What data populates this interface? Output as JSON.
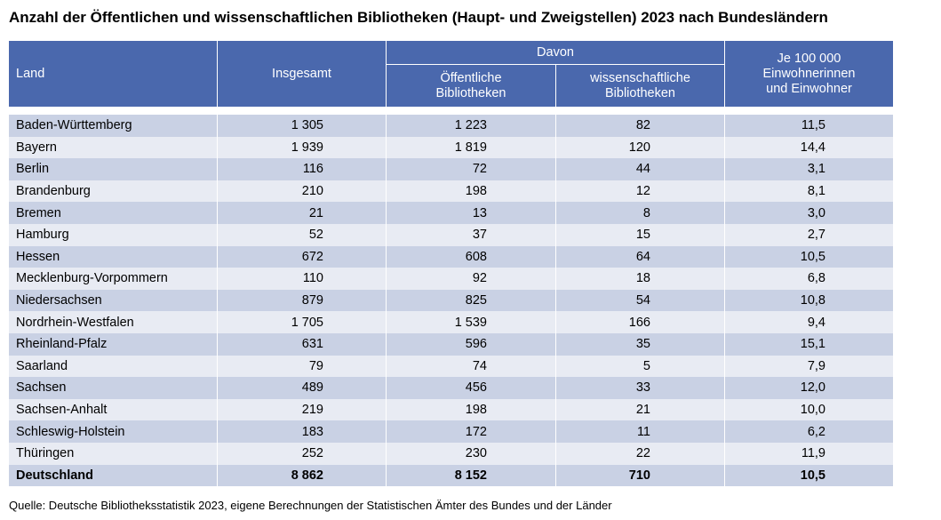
{
  "title": "Anzahl der Öffentlichen und wissenschaftlichen Bibliotheken (Haupt- und Zweigstellen) 2023 nach Bundesländern",
  "table": {
    "header": {
      "land": "Land",
      "insgesamt": "Insgesamt",
      "davon": "Davon",
      "oeffentliche": "Öffentliche\nBibliotheken",
      "wissenschaftliche": "wissenschaftliche\nBibliotheken",
      "je": "Je 100 000\nEinwohnerinnen\nund Einwohner"
    },
    "rows": [
      [
        "Baden-Württemberg",
        "1 305",
        "1 223",
        "82",
        "11,5"
      ],
      [
        "Bayern",
        "1 939",
        "1 819",
        "120",
        "14,4"
      ],
      [
        "Berlin",
        "116",
        "72",
        "44",
        "3,1"
      ],
      [
        "Brandenburg",
        "210",
        "198",
        "12",
        "8,1"
      ],
      [
        "Bremen",
        "21",
        "13",
        "8",
        "3,0"
      ],
      [
        "Hamburg",
        "52",
        "37",
        "15",
        "2,7"
      ],
      [
        "Hessen",
        "672",
        "608",
        "64",
        "10,5"
      ],
      [
        "Mecklenburg-Vorpommern",
        "110",
        "92",
        "18",
        "6,8"
      ],
      [
        "Niedersachsen",
        "879",
        "825",
        "54",
        "10,8"
      ],
      [
        "Nordrhein-Westfalen",
        "1 705",
        "1 539",
        "166",
        "9,4"
      ],
      [
        "Rheinland-Pfalz",
        "631",
        "596",
        "35",
        "15,1"
      ],
      [
        "Saarland",
        "79",
        "74",
        "5",
        "7,9"
      ],
      [
        "Sachsen",
        "489",
        "456",
        "33",
        "12,0"
      ],
      [
        "Sachsen-Anhalt",
        "219",
        "198",
        "21",
        "10,0"
      ],
      [
        "Schleswig-Holstein",
        "183",
        "172",
        "11",
        "6,2"
      ],
      [
        "Thüringen",
        "252",
        "230",
        "22",
        "11,9"
      ],
      [
        "Deutschland",
        "8 862",
        "8 152",
        "710",
        "10,5"
      ]
    ]
  },
  "source": "Quelle: Deutsche Bibliotheksstatistik 2023, eigene Berechnungen der Statistischen Ämter des Bundes und der Länder"
}
